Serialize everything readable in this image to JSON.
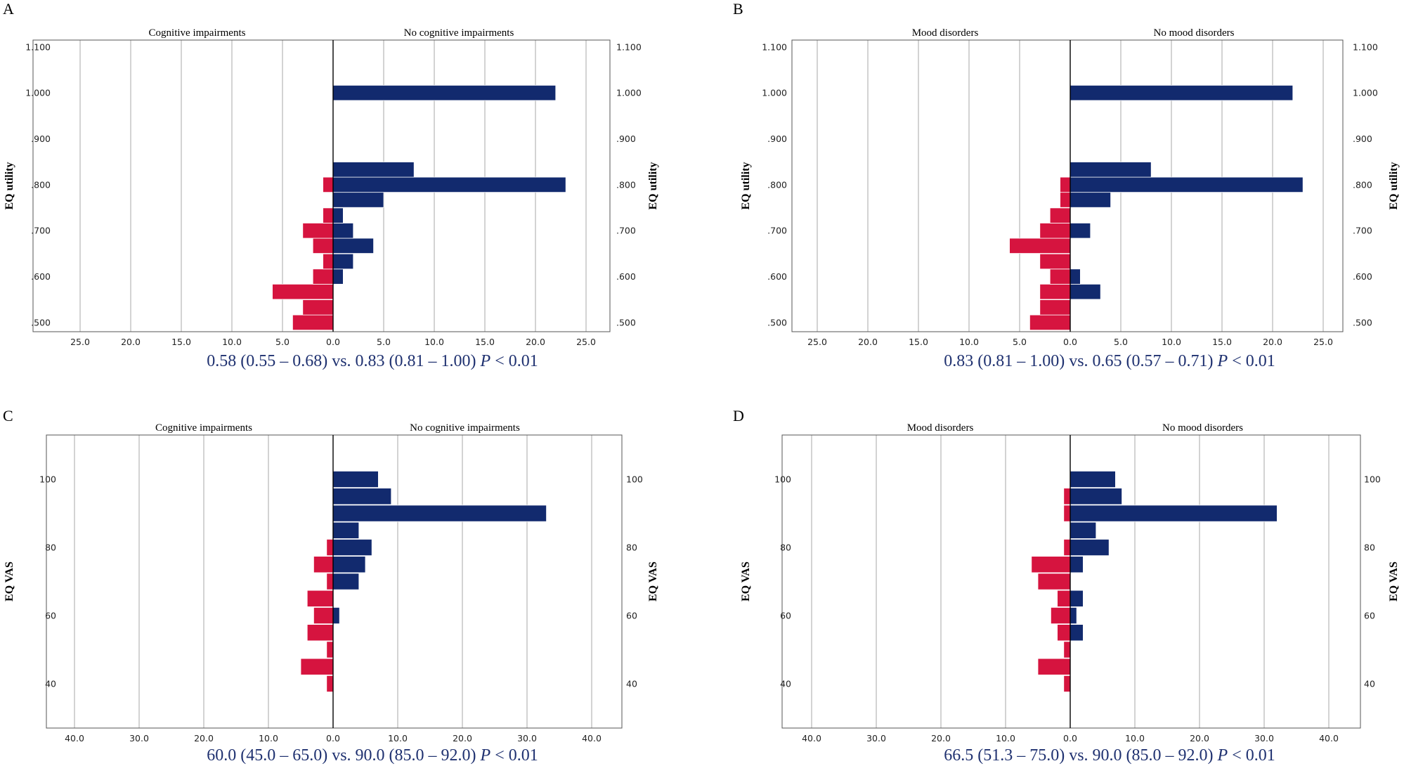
{
  "colors": {
    "left_bar": "#d6143f",
    "right_bar": "#122a6e",
    "grid": "#c8c8c8",
    "summary_text": "#1f3170"
  },
  "chart_data": [
    {
      "type": "bar",
      "orientation": "population-pyramid",
      "panel": "A",
      "left_group": "Cognitive impairments",
      "right_group": "No cognitive impairments",
      "ylabel": "EQ utility",
      "x_tick_labels": [
        "25.0",
        "20.0",
        "15.0",
        "10.0",
        "5.0",
        "0.0",
        "5.0",
        "10.0",
        "15.0",
        "20.0",
        "25.0"
      ],
      "x_range": [
        -27,
        27
      ],
      "y_ticks": [
        ".500",
        ".600",
        ".700",
        ".800",
        ".900",
        "1.000",
        "1.100"
      ],
      "y_range": [
        0.48,
        1.115
      ],
      "bin_width": 0.033,
      "bins": [
        0.5,
        0.533,
        0.567,
        0.6,
        0.633,
        0.667,
        0.7,
        0.733,
        0.767,
        0.8,
        0.833,
        1.0
      ],
      "series": [
        {
          "name": "Cognitive impairments",
          "values": [
            4,
            3,
            6,
            2,
            1,
            2,
            3,
            1,
            0,
            1,
            0,
            0
          ]
        },
        {
          "name": "No cognitive impairments",
          "values": [
            0,
            0,
            0,
            1,
            2,
            4,
            2,
            1,
            5,
            23,
            8,
            22
          ]
        }
      ],
      "summary": {
        "text": "0.58 (0.55 – 0.68) vs. 0.83 (0.81 – 1.00)",
        "p": "P",
        "p_rest": " < 0.01"
      }
    },
    {
      "type": "bar",
      "orientation": "population-pyramid",
      "panel": "B",
      "left_group": "Mood disorders",
      "right_group": "No mood disorders",
      "ylabel": "EQ utility",
      "x_tick_labels": [
        "25.0",
        "20.0",
        "15.0",
        "10.0",
        "5.0",
        "0.0",
        "5.0",
        "10.0",
        "15.0",
        "20.0",
        "25.0"
      ],
      "x_range": [
        -27,
        27
      ],
      "y_ticks": [
        ".500",
        ".600",
        ".700",
        ".800",
        ".900",
        "1.000",
        "1.100"
      ],
      "y_range": [
        0.48,
        1.115
      ],
      "bin_width": 0.033,
      "bins": [
        0.5,
        0.533,
        0.567,
        0.6,
        0.633,
        0.667,
        0.7,
        0.733,
        0.767,
        0.8,
        0.833,
        1.0
      ],
      "series": [
        {
          "name": "Mood disorders",
          "values": [
            4,
            3,
            3,
            2,
            3,
            6,
            3,
            2,
            1,
            1,
            0,
            0
          ]
        },
        {
          "name": "No mood disorders",
          "values": [
            0,
            0,
            3,
            1,
            0,
            0,
            2,
            0,
            4,
            23,
            8,
            22
          ]
        }
      ],
      "summary": {
        "text": "0.83 (0.81 – 1.00) vs. 0.65 (0.57 – 0.71)",
        "p": "P",
        "p_rest": " < 0.01"
      }
    },
    {
      "type": "bar",
      "orientation": "population-pyramid",
      "panel": "C",
      "left_group": "Cognitive impairments",
      "right_group": "No cognitive impairments",
      "ylabel": "EQ VAS",
      "x_tick_labels": [
        "40.0",
        "30.0",
        "20.0",
        "10.0",
        "0.0",
        "10.0",
        "20.0",
        "30.0",
        "40.0"
      ],
      "x_range": [
        -44,
        44
      ],
      "y_ticks": [
        "40",
        "60",
        "80",
        "100"
      ],
      "y_ticks_values": [
        40,
        60,
        80,
        100
      ],
      "y_range": [
        27,
        113
      ],
      "bin_width": 4.8,
      "bins": [
        40,
        45,
        50,
        55,
        60,
        65,
        70,
        75,
        80,
        85,
        90,
        95,
        100
      ],
      "series": [
        {
          "name": "Cognitive impairments",
          "values": [
            1,
            5,
            1,
            4,
            3,
            4,
            1,
            3,
            1,
            0,
            0,
            0,
            0
          ]
        },
        {
          "name": "No cognitive impairments",
          "values": [
            0,
            0,
            0,
            0,
            1,
            0,
            4,
            5,
            6,
            4,
            33,
            9,
            7
          ]
        }
      ],
      "summary": {
        "text": "60.0 (45.0 – 65.0) vs. 90.0 (85.0 – 92.0)",
        "p": "P",
        "p_rest": " < 0.01"
      }
    },
    {
      "type": "bar",
      "orientation": "population-pyramid",
      "panel": "D",
      "left_group": "Mood disorders",
      "right_group": "No mood disorders",
      "ylabel": "EQ VAS",
      "x_tick_labels": [
        "40.0",
        "30.0",
        "20.0",
        "10.0",
        "0.0",
        "10.0",
        "20.0",
        "30.0",
        "40.0"
      ],
      "x_range": [
        -44,
        44
      ],
      "y_ticks": [
        "40",
        "60",
        "80",
        "100"
      ],
      "y_ticks_values": [
        40,
        60,
        80,
        100
      ],
      "y_range": [
        27,
        113
      ],
      "bin_width": 4.8,
      "bins": [
        40,
        45,
        50,
        55,
        60,
        65,
        70,
        75,
        80,
        85,
        90,
        95,
        100
      ],
      "series": [
        {
          "name": "Mood disorders",
          "values": [
            1,
            5,
            1,
            2,
            3,
            2,
            5,
            6,
            1,
            0,
            1,
            1,
            0
          ]
        },
        {
          "name": "No mood disorders",
          "values": [
            0,
            0,
            0,
            2,
            1,
            2,
            0,
            2,
            6,
            4,
            32,
            8,
            7
          ]
        }
      ],
      "summary": {
        "text": "66.5 (51.3 – 75.0) vs. 90.0 (85.0 – 92.0)",
        "p": "P",
        "p_rest": " < 0.01"
      }
    }
  ]
}
